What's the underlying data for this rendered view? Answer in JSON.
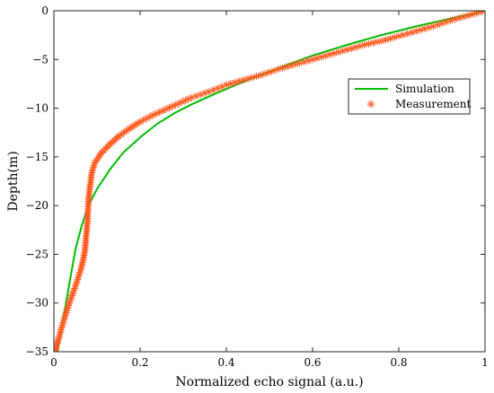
{
  "chart_data": {
    "type": "line",
    "title": "",
    "xlabel": "Normalized echo signal (a.u.)",
    "ylabel": "Depth(m)",
    "xlim": [
      0,
      1
    ],
    "ylim": [
      -35,
      0
    ],
    "x_ticks": [
      0,
      0.2,
      0.4,
      0.6,
      0.8,
      1
    ],
    "x_tick_labels": [
      "0",
      "0.2",
      "0.4",
      "0.6",
      "0.8",
      "1"
    ],
    "y_ticks": [
      0,
      -5,
      -10,
      -15,
      -20,
      -25,
      -30,
      -35
    ],
    "y_tick_labels": [
      "0",
      "−5",
      "−10",
      "−15",
      "−20",
      "−25",
      "−30",
      "−35"
    ],
    "grid": false,
    "legend_position": "right",
    "series": [
      {
        "name": "Simulation",
        "style": "line",
        "color": "#00bb00",
        "points": [
          [
            1.0,
            0
          ],
          [
            0.92,
            -0.8
          ],
          [
            0.84,
            -1.6
          ],
          [
            0.76,
            -2.5
          ],
          [
            0.68,
            -3.5
          ],
          [
            0.6,
            -4.6
          ],
          [
            0.52,
            -5.9
          ],
          [
            0.45,
            -7.1
          ],
          [
            0.38,
            -8.4
          ],
          [
            0.32,
            -9.6
          ],
          [
            0.28,
            -10.5
          ],
          [
            0.24,
            -11.6
          ],
          [
            0.2,
            -13.0
          ],
          [
            0.16,
            -14.6
          ],
          [
            0.13,
            -16.3
          ],
          [
            0.1,
            -18.3
          ],
          [
            0.08,
            -20.0
          ],
          [
            0.065,
            -22.0
          ],
          [
            0.05,
            -24.5
          ],
          [
            0.04,
            -27.0
          ],
          [
            0.03,
            -29.5
          ],
          [
            0.02,
            -32.0
          ],
          [
            0.012,
            -34.0
          ],
          [
            0.008,
            -35.0
          ]
        ]
      },
      {
        "name": "Measurement",
        "style": "markers",
        "marker": "asterisk",
        "color": "#ff5a1f",
        "points": [
          [
            1.0,
            0
          ],
          [
            0.96,
            -0.5
          ],
          [
            0.92,
            -1.0
          ],
          [
            0.88,
            -1.6
          ],
          [
            0.84,
            -2.1
          ],
          [
            0.8,
            -2.6
          ],
          [
            0.76,
            -3.1
          ],
          [
            0.72,
            -3.5
          ],
          [
            0.68,
            -4.0
          ],
          [
            0.64,
            -4.5
          ],
          [
            0.6,
            -5.0
          ],
          [
            0.56,
            -5.5
          ],
          [
            0.52,
            -6.0
          ],
          [
            0.48,
            -6.6
          ],
          [
            0.44,
            -7.1
          ],
          [
            0.4,
            -7.6
          ],
          [
            0.36,
            -8.3
          ],
          [
            0.32,
            -8.9
          ],
          [
            0.29,
            -9.5
          ],
          [
            0.26,
            -10.1
          ],
          [
            0.23,
            -10.7
          ],
          [
            0.2,
            -11.4
          ],
          [
            0.175,
            -12.1
          ],
          [
            0.15,
            -12.9
          ],
          [
            0.13,
            -13.7
          ],
          [
            0.11,
            -14.6
          ],
          [
            0.095,
            -15.6
          ],
          [
            0.088,
            -16.6
          ],
          [
            0.085,
            -17.6
          ],
          [
            0.082,
            -18.6
          ],
          [
            0.08,
            -19.6
          ],
          [
            0.079,
            -20.6
          ],
          [
            0.078,
            -21.6
          ],
          [
            0.076,
            -22.6
          ],
          [
            0.074,
            -23.6
          ],
          [
            0.072,
            -24.6
          ],
          [
            0.068,
            -25.6
          ],
          [
            0.062,
            -26.6
          ],
          [
            0.055,
            -27.6
          ],
          [
            0.048,
            -28.5
          ],
          [
            0.04,
            -29.5
          ],
          [
            0.032,
            -30.5
          ],
          [
            0.025,
            -31.5
          ],
          [
            0.018,
            -32.5
          ],
          [
            0.012,
            -33.5
          ],
          [
            0.006,
            -34.3
          ],
          [
            0.003,
            -35.0
          ]
        ]
      }
    ]
  }
}
